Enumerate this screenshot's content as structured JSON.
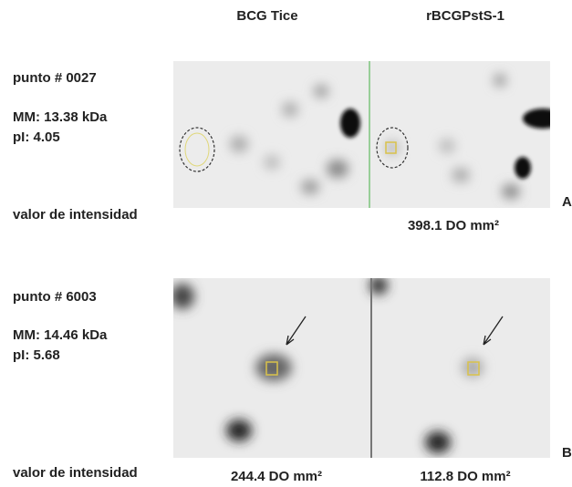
{
  "header": {
    "columns": [
      "BCG Tice",
      "rBCGPstS-1"
    ]
  },
  "panels": [
    {
      "letter": "A",
      "spot": "punto # 0027",
      "mm": "MM: 13.38 kDa",
      "pi": "pI: 4.05",
      "intensity_label": "valor de intensidad",
      "values": [
        "398.1 DO mm²"
      ]
    },
    {
      "letter": "B",
      "spot": "punto # 6003",
      "mm": "MM: 14.46 kDa",
      "pi": "pI: 5.68",
      "intensity_label": "valor de intensidad",
      "values": [
        "244.4 DO mm²",
        "112.8 DO mm²"
      ]
    }
  ]
}
